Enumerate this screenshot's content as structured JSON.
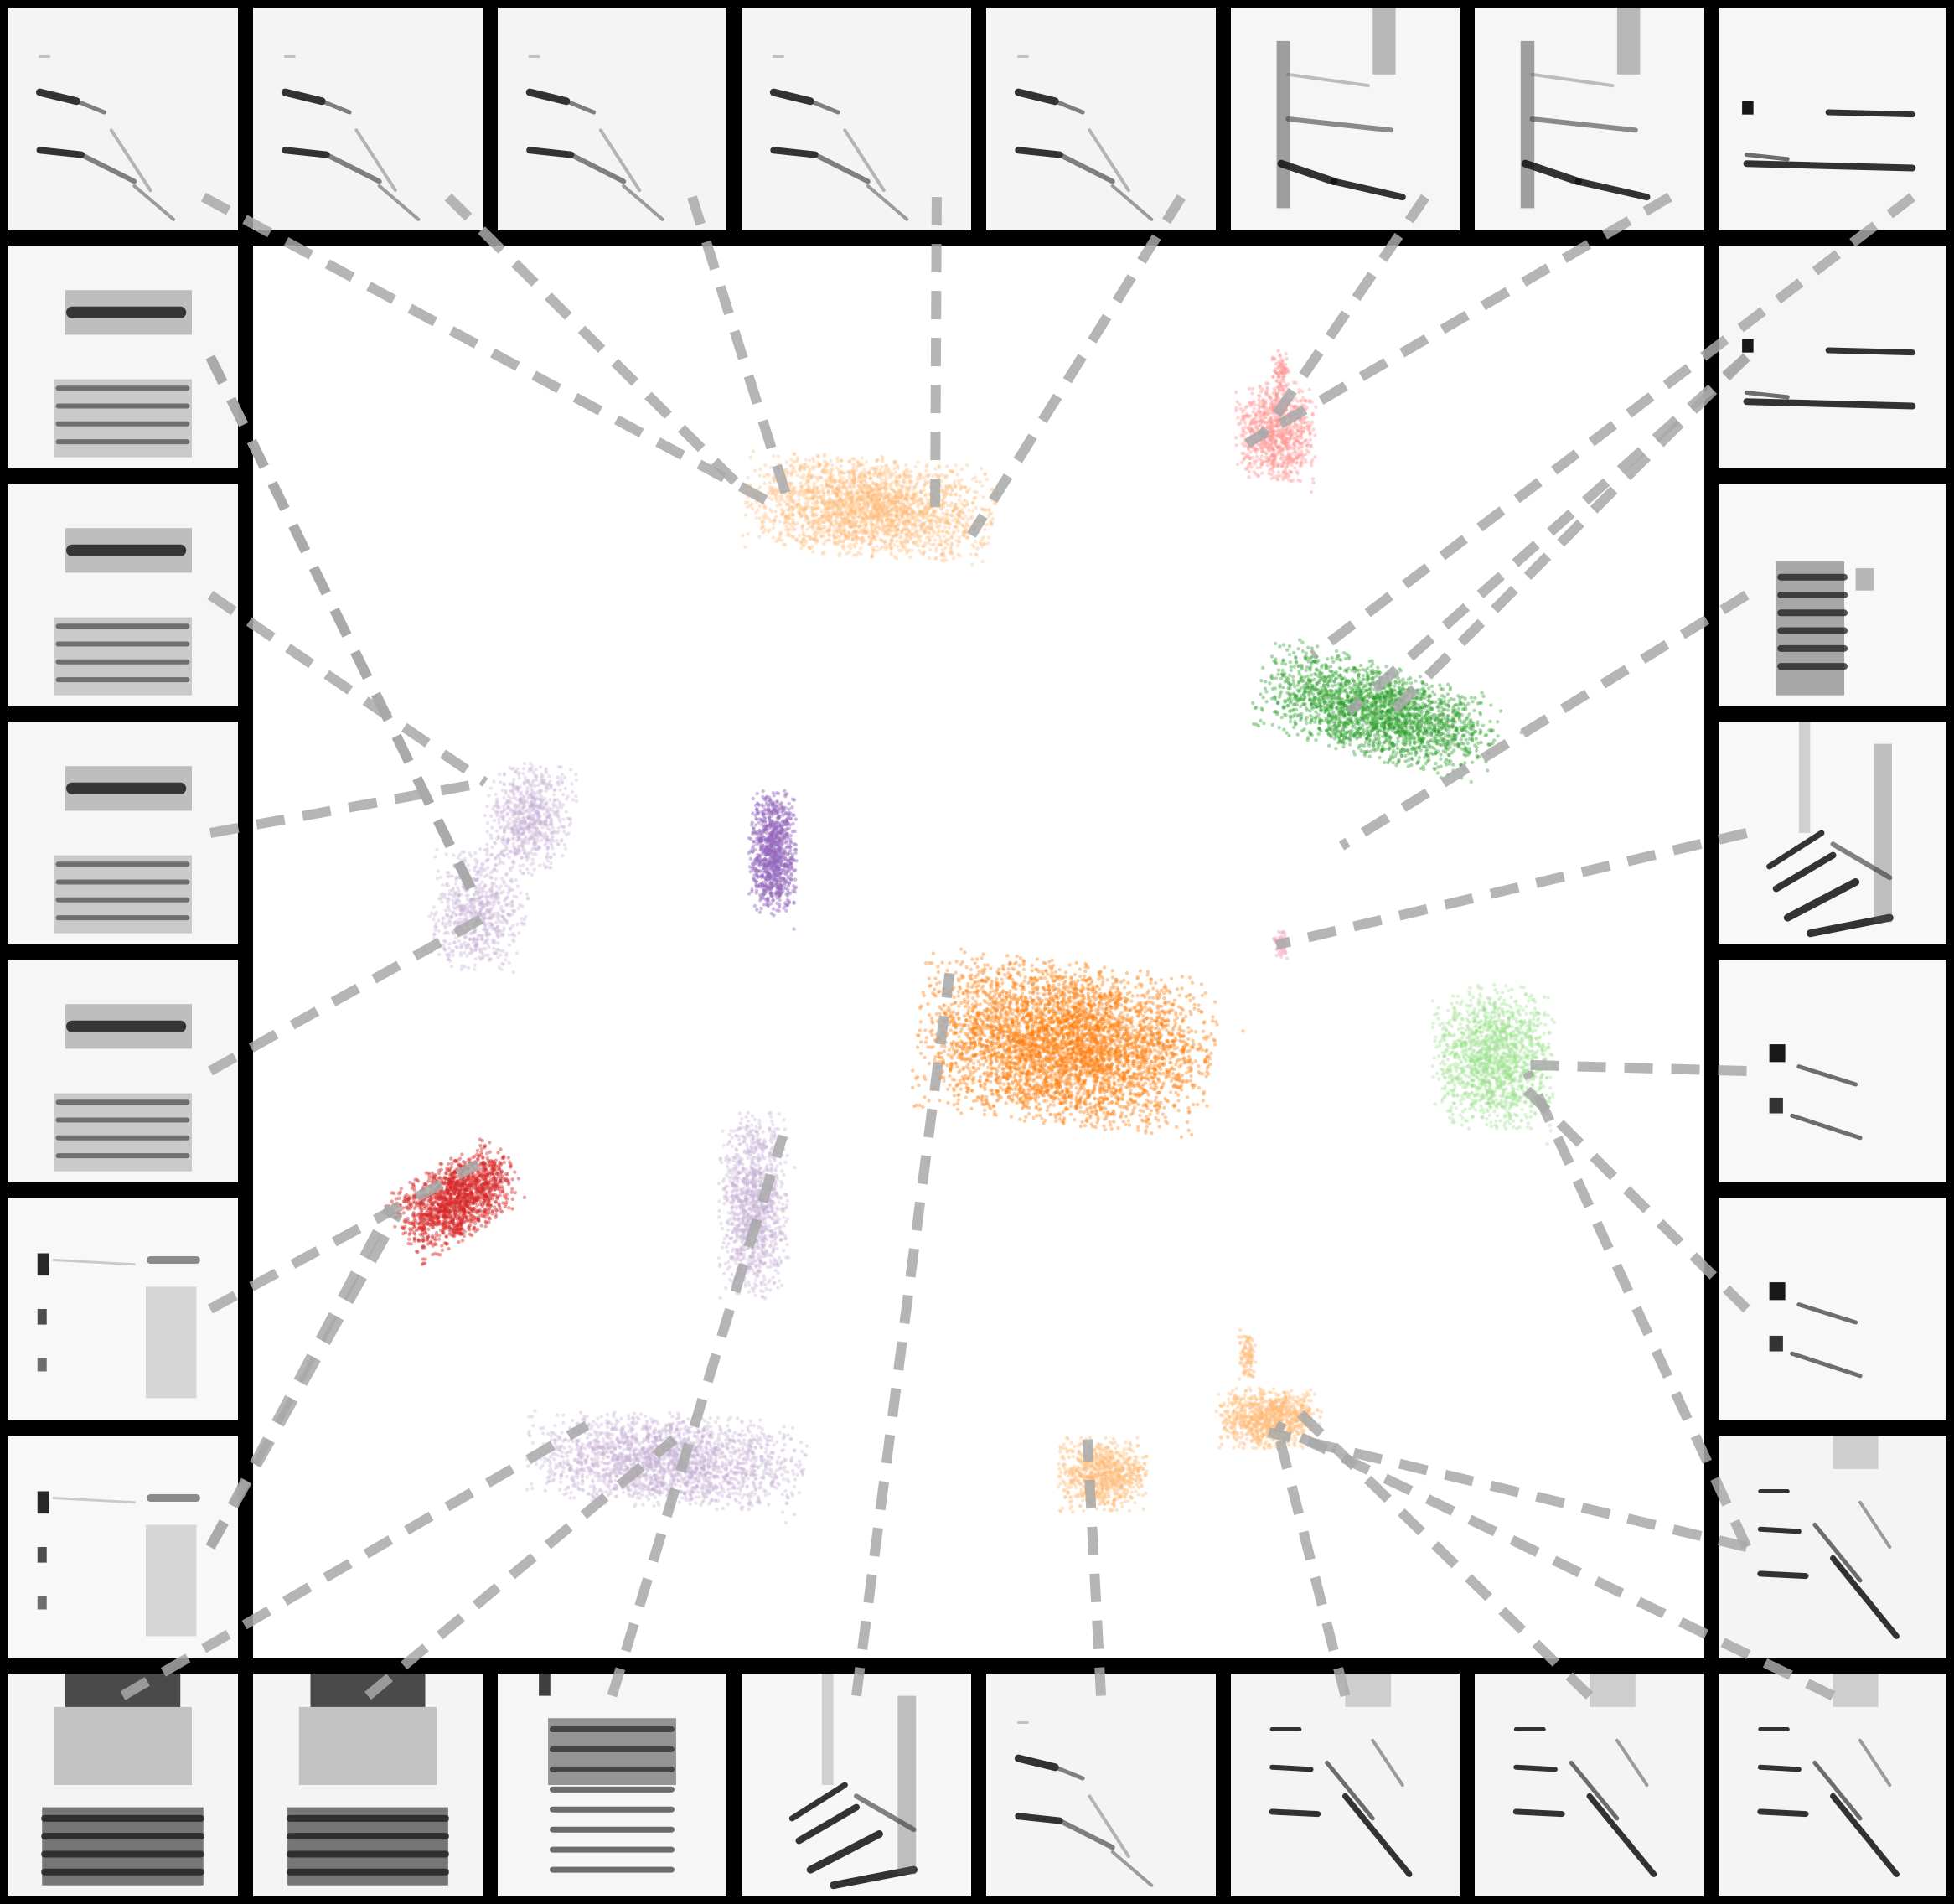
{
  "chart_data": {
    "type": "scatter",
    "title": "",
    "xlabel": "",
    "ylabel": "",
    "grid": false,
    "legend": "none",
    "embedding_range": {
      "x": [
        0,
        100
      ],
      "y": [
        0,
        100
      ]
    },
    "spectrogram_thumbnail_count": 32,
    "clusters": [
      {
        "id": "c-top-light-orange",
        "color": "#ffbb78",
        "center": [
          42.5,
          18.5
        ],
        "spread": [
          7.2,
          3.0
        ],
        "tilt": 0.08,
        "n": 2400,
        "alpha": 0.35
      },
      {
        "id": "c-top-pink",
        "color": "#ff9896",
        "center": [
          70.5,
          13.2
        ],
        "spread": [
          2.3,
          3.0
        ],
        "tilt": 0.0,
        "n": 900,
        "alpha": 0.4
      },
      {
        "id": "c-top-pink-tail",
        "color": "#ff9896",
        "center": [
          70.8,
          9.0
        ],
        "spread": [
          0.5,
          1.3
        ],
        "tilt": 0.0,
        "n": 80,
        "alpha": 0.45
      },
      {
        "id": "c-right-green",
        "color": "#2ca02c",
        "center": [
          77.5,
          33.0
        ],
        "spread": [
          7.0,
          2.8
        ],
        "tilt": 0.28,
        "n": 2200,
        "alpha": 0.4
      },
      {
        "id": "c-left-lavender-upper",
        "color": "#c5b0d5",
        "center": [
          19.0,
          40.5
        ],
        "spread": [
          2.5,
          3.3
        ],
        "tilt": 0.2,
        "n": 700,
        "alpha": 0.35
      },
      {
        "id": "c-left-lavender-lower",
        "color": "#c5b0d5",
        "center": [
          15.5,
          47.0
        ],
        "spread": [
          2.8,
          3.6
        ],
        "tilt": 0.1,
        "n": 700,
        "alpha": 0.35
      },
      {
        "id": "c-center-purple",
        "color": "#9467bd",
        "center": [
          35.8,
          43.0
        ],
        "spread": [
          1.4,
          3.8
        ],
        "tilt": 0.0,
        "n": 900,
        "alpha": 0.45
      },
      {
        "id": "c-pink-small",
        "color": "#f7b6d2",
        "center": [
          70.8,
          49.5
        ],
        "spread": [
          0.4,
          0.8
        ],
        "tilt": 0.0,
        "n": 60,
        "alpha": 0.6
      },
      {
        "id": "c-center-orange",
        "color": "#ff7f0e",
        "center": [
          56.0,
          56.5
        ],
        "spread": [
          8.5,
          4.8
        ],
        "tilt": 0.12,
        "n": 4500,
        "alpha": 0.4
      },
      {
        "id": "c-right-light-green",
        "color": "#98df8a",
        "center": [
          85.5,
          57.5
        ],
        "spread": [
          3.5,
          4.3
        ],
        "tilt": 0.0,
        "n": 1500,
        "alpha": 0.35
      },
      {
        "id": "c-left-red",
        "color": "#d62728",
        "center": [
          14.0,
          67.5
        ],
        "spread": [
          3.8,
          2.3
        ],
        "tilt": -0.55,
        "n": 1500,
        "alpha": 0.45
      },
      {
        "id": "c-center-lavender",
        "color": "#c5b0d5",
        "center": [
          34.5,
          68.0
        ],
        "spread": [
          2.0,
          5.5
        ],
        "tilt": 0.0,
        "n": 1200,
        "alpha": 0.35
      },
      {
        "id": "c-bottom-lavender",
        "color": "#c5b0d5",
        "center": [
          28.5,
          86.0
        ],
        "spread": [
          8.0,
          2.8
        ],
        "tilt": 0.05,
        "n": 2200,
        "alpha": 0.35
      },
      {
        "id": "c-bottom-light-orange-small",
        "color": "#ffbb78",
        "center": [
          58.5,
          87.0
        ],
        "spread": [
          2.6,
          2.2
        ],
        "tilt": 0.0,
        "n": 800,
        "alpha": 0.4
      },
      {
        "id": "c-bottom-light-orange-right",
        "color": "#ffbb78",
        "center": [
          70.0,
          83.0
        ],
        "spread": [
          3.0,
          1.8
        ],
        "tilt": 0.0,
        "n": 900,
        "alpha": 0.4
      },
      {
        "id": "c-bottom-light-orange-tail",
        "color": "#ffbb78",
        "center": [
          68.5,
          78.5
        ],
        "spread": [
          0.6,
          1.6
        ],
        "tilt": 0.0,
        "n": 90,
        "alpha": 0.45
      }
    ],
    "connector_color": "#a8a8a8",
    "connectors": [
      {
        "tile": "top-0",
        "target": [
          36.2,
          18.5
        ]
      },
      {
        "tile": "top-1",
        "target": [
          33.5,
          17.0
        ]
      },
      {
        "tile": "top-2",
        "target": [
          37.0,
          18.5
        ]
      },
      {
        "tile": "top-3",
        "target": [
          47.0,
          19.5
        ]
      },
      {
        "tile": "top-4",
        "target": [
          49.5,
          20.5
        ]
      },
      {
        "tile": "top-5",
        "target": [
          69.5,
          13.5
        ]
      },
      {
        "tile": "top-6",
        "target": [
          68.5,
          14.0
        ]
      },
      {
        "tile": "top-7",
        "target": [
          73.0,
          29.0
        ]
      },
      {
        "tile": "right-0",
        "target": [
          75.5,
          33.0
        ]
      },
      {
        "tile": "right-1",
        "target": [
          78.0,
          33.5
        ]
      },
      {
        "tile": "right-2",
        "target": [
          75.0,
          42.5
        ]
      },
      {
        "tile": "right-3",
        "target": [
          70.5,
          49.5
        ]
      },
      {
        "tile": "right-4",
        "target": [
          88.0,
          58.0
        ]
      },
      {
        "tile": "right-5",
        "target": [
          87.0,
          59.0
        ]
      },
      {
        "tile": "right-6",
        "target": [
          87.8,
          58.5
        ]
      },
      {
        "tile": "right-7",
        "target": [
          70.0,
          84.0
        ]
      },
      {
        "tile": "bottom-7",
        "target": [
          70.5,
          83.5
        ]
      },
      {
        "tile": "bottom-6",
        "target": [
          71.5,
          82.0
        ]
      },
      {
        "tile": "bottom-5",
        "target": [
          70.5,
          83.5
        ]
      },
      {
        "tile": "bottom-4",
        "target": [
          57.5,
          84.5
        ]
      },
      {
        "tile": "bottom-3",
        "target": [
          48.0,
          51.5
        ]
      },
      {
        "tile": "bottom-2",
        "target": [
          36.5,
          63.0
        ]
      },
      {
        "tile": "bottom-1",
        "target": [
          29.0,
          84.5
        ]
      },
      {
        "tile": "bottom-0",
        "target": [
          23.0,
          83.5
        ]
      },
      {
        "tile": "left-7",
        "target": [
          10.0,
          68.5
        ]
      },
      {
        "tile": "left-6",
        "target": [
          9.5,
          68.0
        ]
      },
      {
        "tile": "left-5",
        "target": [
          15.5,
          65.0
        ]
      },
      {
        "tile": "left-4",
        "target": [
          16.0,
          47.5
        ]
      },
      {
        "tile": "left-3",
        "target": [
          16.0,
          38.0
        ]
      },
      {
        "tile": "left-2",
        "target": [
          16.0,
          38.0
        ]
      },
      {
        "tile": "left-1",
        "target": [
          15.5,
          46.5
        ]
      },
      {
        "tile": "left-0",
        "target": [
          15.5,
          46.5
        ]
      }
    ],
    "tiles": [
      {
        "id": "top-0",
        "style": "chirp",
        "bg": "#f4f4f4"
      },
      {
        "id": "top-1",
        "style": "chirp",
        "bg": "#f4f4f4"
      },
      {
        "id": "top-2",
        "style": "chirp",
        "bg": "#f4f4f4"
      },
      {
        "id": "top-3",
        "style": "chirp",
        "bg": "#f4f4f4"
      },
      {
        "id": "top-4",
        "style": "chirp",
        "bg": "#f4f4f4"
      },
      {
        "id": "top-5",
        "style": "tall",
        "bg": "#f6f6f6"
      },
      {
        "id": "top-6",
        "style": "tall",
        "bg": "#f6f6f6"
      },
      {
        "id": "top-7",
        "style": "twoline",
        "bg": "#f6f6f6"
      },
      {
        "id": "right-0",
        "style": "twoline",
        "bg": "#f6f6f6"
      },
      {
        "id": "right-1",
        "style": "twoline",
        "bg": "#f6f6f6"
      },
      {
        "id": "right-2",
        "style": "column",
        "bg": "#f8f8f8"
      },
      {
        "id": "right-3",
        "style": "curves",
        "bg": "#f8f8f8"
      },
      {
        "id": "right-4",
        "style": "short",
        "bg": "#f8f8f8"
      },
      {
        "id": "right-5",
        "style": "short",
        "bg": "#f8f8f8"
      },
      {
        "id": "right-6",
        "style": "short",
        "bg": "#f8f8f8"
      },
      {
        "id": "right-7",
        "style": "bird",
        "bg": "#f4f4f4"
      },
      {
        "id": "bottom-7",
        "style": "bird",
        "bg": "#f4f4f4"
      },
      {
        "id": "bottom-6",
        "style": "bird",
        "bg": "#f4f4f4"
      },
      {
        "id": "bottom-5",
        "style": "bird",
        "bg": "#f4f4f4"
      },
      {
        "id": "bottom-4",
        "style": "chirp",
        "bg": "#f4f4f4"
      },
      {
        "id": "bottom-3",
        "style": "curves",
        "bg": "#f7f7f7"
      },
      {
        "id": "bottom-2",
        "style": "harmonic",
        "bg": "#f6f6f6"
      },
      {
        "id": "bottom-1",
        "style": "heavy",
        "bg": "#f4f4f4"
      },
      {
        "id": "bottom-0",
        "style": "heavy",
        "bg": "#f4f4f4"
      },
      {
        "id": "left-7",
        "style": "dots",
        "bg": "#f8f8f8"
      },
      {
        "id": "left-6",
        "style": "dots",
        "bg": "#f8f8f8"
      },
      {
        "id": "left-5",
        "style": "dots",
        "bg": "#f8f8f8"
      },
      {
        "id": "left-4",
        "style": "stripes",
        "bg": "#f6f6f6"
      },
      {
        "id": "left-3",
        "style": "stripes",
        "bg": "#f6f6f6"
      },
      {
        "id": "left-2",
        "style": "stripes",
        "bg": "#f6f6f6"
      },
      {
        "id": "left-1",
        "style": "stripes",
        "bg": "#f6f6f6"
      },
      {
        "id": "left-0",
        "style": "stripes",
        "bg": "#f6f6f6"
      }
    ]
  }
}
